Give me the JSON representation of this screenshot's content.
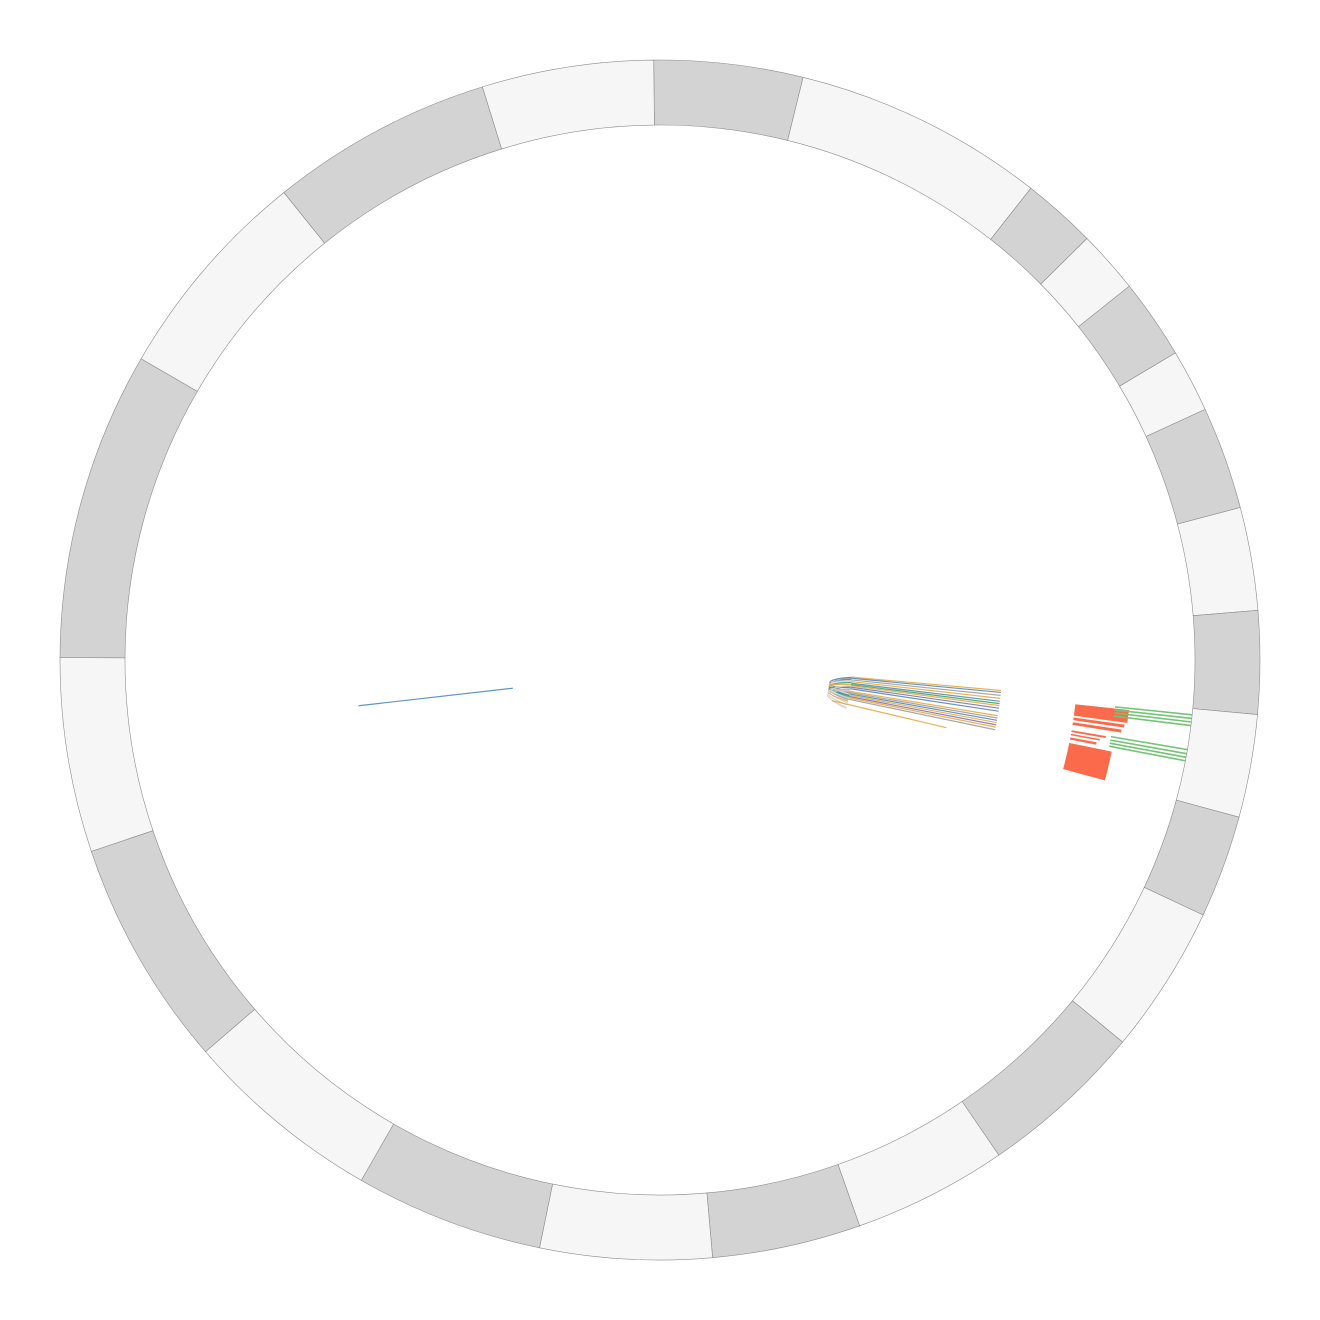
{
  "chart_data": {
    "type": "circos",
    "title": "",
    "segments": [
      {
        "start": 0,
        "end": 26,
        "fill": "#d3d3d3"
      },
      {
        "start": 26,
        "end": 70,
        "fill": "#f6f6f6"
      },
      {
        "start": 70,
        "end": 83,
        "fill": "#d3d3d3"
      },
      {
        "start": 83,
        "end": 94,
        "fill": "#f6f6f6"
      },
      {
        "start": 94,
        "end": 108,
        "fill": "#d3d3d3"
      },
      {
        "start": 108,
        "end": 119,
        "fill": "#f6f6f6"
      },
      {
        "start": 119,
        "end": 137,
        "fill": "#d3d3d3"
      },
      {
        "start": 137,
        "end": 155,
        "fill": "#f6f6f6"
      },
      {
        "start": 155,
        "end": 173,
        "fill": "#d3d3d3"
      },
      {
        "start": 173,
        "end": 191,
        "fill": "#f6f6f6"
      },
      {
        "start": 191,
        "end": 209,
        "fill": "#d3d3d3"
      },
      {
        "start": 209,
        "end": 235,
        "fill": "#f6f6f6"
      },
      {
        "start": 235,
        "end": 264,
        "fill": "#d3d3d3"
      },
      {
        "start": 264,
        "end": 291,
        "fill": "#f6f6f6"
      },
      {
        "start": 291,
        "end": 317,
        "fill": "#d3d3d3"
      },
      {
        "start": 317,
        "end": 347,
        "fill": "#f6f6f6"
      },
      {
        "start": 347,
        "end": 380,
        "fill": "#d3d3d3"
      },
      {
        "start": 380,
        "end": 415,
        "fill": "#f6f6f6"
      },
      {
        "start": 415,
        "end": 455,
        "fill": "#d3d3d3"
      },
      {
        "start": 455,
        "end": 489,
        "fill": "#f6f6f6"
      },
      {
        "start": 489,
        "end": 543,
        "fill": "#d3d3d3"
      },
      {
        "start": 543,
        "end": 581,
        "fill": "#f6f6f6"
      },
      {
        "start": 581,
        "end": 620,
        "fill": "#d3d3d3"
      },
      {
        "start": 620,
        "end": 650,
        "fill": "#f6f6f6"
      }
    ],
    "total": 650,
    "histograms": [
      {
        "start": 174.5,
        "end": 177.5,
        "inner": 0.78,
        "outer": 0.882,
        "fill": "#fb6a4a"
      },
      {
        "start": 177.8,
        "end": 178.6,
        "inner": 0.78,
        "outer": 0.877,
        "fill": "#fb6a4a"
      },
      {
        "start": 179.0,
        "end": 179.8,
        "inner": 0.78,
        "outer": 0.873,
        "fill": "#fb6a4a"
      },
      {
        "start": 181.0,
        "end": 181.6,
        "inner": 0.78,
        "outer": 0.846,
        "fill": "#fb6a4a"
      },
      {
        "start": 181.9,
        "end": 182.4,
        "inner": 0.78,
        "outer": 0.836,
        "fill": "#fb6a4a"
      },
      {
        "start": 182.8,
        "end": 183.5,
        "inner": 0.78,
        "outer": 0.831,
        "fill": "#fb6a4a"
      },
      {
        "start": 184.2,
        "end": 191.0,
        "inner": 0.78,
        "outer": 0.862,
        "fill": "#fb6a4a"
      }
    ],
    "outer_ticks": [
      {
        "pos": 174.2,
        "len": 0.145,
        "color": "#74c476"
      },
      {
        "pos": 174.9,
        "len": 0.145,
        "color": "#74c476"
      },
      {
        "pos": 175.6,
        "len": 0.145,
        "color": "#74c476"
      },
      {
        "pos": 176.3,
        "len": 0.145,
        "color": "#74c476"
      },
      {
        "pos": 181.0,
        "len": 0.145,
        "color": "#74c476"
      },
      {
        "pos": 181.8,
        "len": 0.145,
        "color": "#74c476"
      },
      {
        "pos": 182.5,
        "len": 0.145,
        "color": "#74c476"
      },
      {
        "pos": 183.2,
        "len": 0.145,
        "color": "#74c476"
      }
    ],
    "spokes": [
      {
        "pos": 172.8,
        "color": "#e6a532"
      },
      {
        "pos": 173.4,
        "color": "#4682b4"
      },
      {
        "pos": 174.3,
        "color": "#999999"
      },
      {
        "pos": 175.2,
        "color": "#e6a532"
      },
      {
        "pos": 176.1,
        "color": "#4682b4"
      },
      {
        "pos": 176.8,
        "color": "#2ca25f"
      },
      {
        "pos": 177.4,
        "color": "#e6a532"
      },
      {
        "pos": 178.2,
        "color": "#756bb1"
      },
      {
        "pos": 179.1,
        "color": "#4682b4"
      },
      {
        "pos": 180.5,
        "color": "#e6a532"
      },
      {
        "pos": 181.2,
        "color": "#999999"
      },
      {
        "pos": 181.9,
        "color": "#4682b4"
      },
      {
        "pos": 182.6,
        "color": "#e6a532"
      },
      {
        "pos": 183.3,
        "color": "#756bb1"
      },
      {
        "pos": 184.0,
        "color": "#e6a532"
      },
      {
        "pos": 184.8,
        "color": "#999999"
      }
    ],
    "chords": [
      {
        "from": 172.9,
        "to": 181.5,
        "color": "#4682b4"
      },
      {
        "from": 173.5,
        "to": 180.9,
        "color": "#999999"
      },
      {
        "from": 174.0,
        "to": 183.0,
        "color": "#4682b4"
      },
      {
        "from": 174.6,
        "to": 182.2,
        "color": "#cccccc"
      },
      {
        "from": 175.1,
        "to": 184.3,
        "color": "#cccccc"
      },
      {
        "from": 175.7,
        "to": 183.6,
        "color": "#2ca25f"
      },
      {
        "from": 176.3,
        "to": 185.4,
        "color": "#cccccc"
      },
      {
        "from": 176.9,
        "to": 181.2,
        "color": "#e6a532"
      },
      {
        "from": 177.5,
        "to": 186.8,
        "color": "#cccccc"
      },
      {
        "from": 178.0,
        "to": 184.9,
        "color": "#999999"
      },
      {
        "from": 178.6,
        "to": 182.7,
        "color": "#4682b4"
      },
      {
        "from": 179.2,
        "to": 188.0,
        "color": "#cccccc"
      },
      {
        "from": 179.8,
        "to": 185.9,
        "color": "#e6a532"
      },
      {
        "from": 180.4,
        "to": 183.9,
        "color": "#cccccc"
      },
      {
        "from": 180.1,
        "to": 189.4,
        "color": "#cccccc"
      },
      {
        "from": 177.2,
        "to": 190.2,
        "color": "#dddddd"
      }
    ],
    "lone_link": {
      "from": 473.0,
      "r1": 0.57,
      "to": 473.0,
      "r2": 0.28,
      "color": "#4682b4"
    },
    "long_spoke": {
      "pos": 187.6,
      "r1": 0.33,
      "r2": 0.55,
      "color": "#e6a532"
    }
  }
}
